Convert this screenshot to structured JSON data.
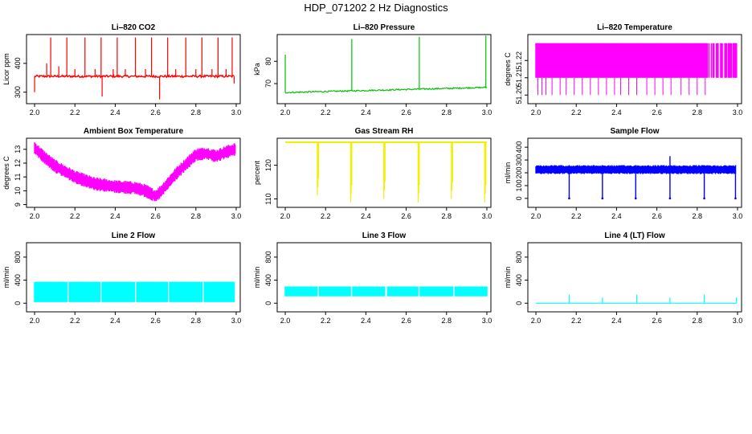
{
  "figure": {
    "title": "HDP_071202  2 Hz Diagnostics"
  },
  "chart_data": [
    {
      "type": "line",
      "title": "Li–820 CO2",
      "ylabel": "Licor ppm",
      "color": "#ff0000",
      "xlim": [
        1.96,
        3.02
      ],
      "ylim": [
        260,
        500
      ],
      "xticks": [
        2.0,
        2.2,
        2.4,
        2.6,
        2.8,
        3.0
      ],
      "xtick_labels": [
        "2.0",
        "2.2",
        "2.4",
        "2.6",
        "2.8",
        "3.0"
      ],
      "yticks": [
        300,
        400
      ],
      "ytick_labels": [
        "300",
        "400"
      ],
      "series": [
        {
          "name": "CO2",
          "baseline": 355,
          "noise": 4,
          "x_range": [
            2.0,
            2.99
          ],
          "spikes": [
            {
              "x": 2.0,
              "y": 300
            },
            {
              "x": 2.06,
              "y": 400
            },
            {
              "x": 2.08,
              "y": 490
            },
            {
              "x": 2.12,
              "y": 390
            },
            {
              "x": 2.16,
              "y": 490
            },
            {
              "x": 2.2,
              "y": 380
            },
            {
              "x": 2.25,
              "y": 490
            },
            {
              "x": 2.3,
              "y": 380
            },
            {
              "x": 2.33,
              "y": 490
            },
            {
              "x": 2.335,
              "y": 285
            },
            {
              "x": 2.39,
              "y": 380
            },
            {
              "x": 2.41,
              "y": 490
            },
            {
              "x": 2.45,
              "y": 380
            },
            {
              "x": 2.5,
              "y": 490
            },
            {
              "x": 2.55,
              "y": 380
            },
            {
              "x": 2.58,
              "y": 490
            },
            {
              "x": 2.62,
              "y": 275
            },
            {
              "x": 2.66,
              "y": 490
            },
            {
              "x": 2.7,
              "y": 380
            },
            {
              "x": 2.75,
              "y": 490
            },
            {
              "x": 2.8,
              "y": 380
            },
            {
              "x": 2.83,
              "y": 490
            },
            {
              "x": 2.88,
              "y": 380
            },
            {
              "x": 2.91,
              "y": 490
            },
            {
              "x": 2.95,
              "y": 380
            },
            {
              "x": 2.98,
              "y": 490
            },
            {
              "x": 2.99,
              "y": 330
            }
          ]
        }
      ]
    },
    {
      "type": "line",
      "title": "Li–820 Pressure",
      "ylabel": "kPa",
      "color": "#00c000",
      "xlim": [
        1.96,
        3.02
      ],
      "ylim": [
        61,
        92
      ],
      "xticks": [
        2.0,
        2.2,
        2.4,
        2.6,
        2.8,
        3.0
      ],
      "xtick_labels": [
        "2.0",
        "2.2",
        "2.4",
        "2.6",
        "2.8",
        "3.0"
      ],
      "yticks": [
        70,
        80
      ],
      "ytick_labels": [
        "70",
        "80"
      ],
      "series": [
        {
          "name": "Pressure",
          "trend": [
            [
              2.0,
              66.0
            ],
            [
              3.0,
              68.3
            ]
          ],
          "noise": 0.3,
          "x_range": [
            2.0,
            3.0
          ],
          "spikes": [
            {
              "x": 2.0,
              "y": 83
            },
            {
              "x": 2.33,
              "y": 90
            },
            {
              "x": 2.665,
              "y": 91
            },
            {
              "x": 2.995,
              "y": 91.5
            }
          ]
        }
      ]
    },
    {
      "type": "line",
      "title": "Li–820 Temperature",
      "ylabel": "degrees C",
      "color": "#ff00ff",
      "xlim": [
        1.96,
        3.02
      ],
      "ylim": [
        51.195,
        51.235
      ],
      "xticks": [
        2.0,
        2.2,
        2.4,
        2.6,
        2.8,
        3.0
      ],
      "xtick_labels": [
        "2.0",
        "2.2",
        "2.4",
        "2.6",
        "2.8",
        "3.0"
      ],
      "yticks": [
        51.2,
        51.21,
        51.22
      ],
      "ytick_labels": [
        "51.20",
        "51.21",
        "51.22"
      ],
      "series": [
        {
          "name": "Temperature",
          "band": [
            51.21,
            51.23
          ],
          "x_range": [
            2.0,
            2.995
          ],
          "gaps": [
            2.855,
            2.865,
            2.875,
            2.89,
            2.91,
            2.93,
            2.95,
            2.975
          ],
          "drops": [
            2.01,
            2.03,
            2.05,
            2.08,
            2.12,
            2.15,
            2.19,
            2.23,
            2.27,
            2.31,
            2.35,
            2.39,
            2.42,
            2.46,
            2.5,
            2.55,
            2.59,
            2.63,
            2.67,
            2.72,
            2.76,
            2.8,
            2.84
          ],
          "drop_to": 51.2
        }
      ]
    },
    {
      "type": "line",
      "title": "Ambient Box Temperature",
      "ylabel": "degrees C",
      "color": "#ff00ff",
      "xlim": [
        1.96,
        3.02
      ],
      "ylim": [
        8.8,
        13.8
      ],
      "xticks": [
        2.0,
        2.2,
        2.4,
        2.6,
        2.8,
        3.0
      ],
      "xtick_labels": [
        "2.0",
        "2.2",
        "2.4",
        "2.6",
        "2.8",
        "3.0"
      ],
      "yticks": [
        9,
        10,
        11,
        12,
        13
      ],
      "ytick_labels": [
        "9",
        "10",
        "11",
        "12",
        "13"
      ],
      "series": [
        {
          "name": "Ambient",
          "band_width": 0.8,
          "x_range": [
            2.0,
            2.995
          ],
          "x": [
            2.0,
            2.05,
            2.1,
            2.15,
            2.2,
            2.3,
            2.4,
            2.5,
            2.55,
            2.6,
            2.63,
            2.7,
            2.8,
            2.85,
            2.9,
            2.95,
            2.995
          ],
          "y": [
            13.1,
            12.4,
            11.8,
            11.4,
            11.0,
            10.5,
            10.3,
            10.2,
            10.0,
            9.6,
            10.0,
            11.2,
            12.6,
            12.7,
            12.5,
            12.8,
            13.0
          ]
        }
      ]
    },
    {
      "type": "line",
      "title": "Gas Stream RH",
      "ylabel": "percent",
      "color": "#f0f000",
      "xlim": [
        1.96,
        3.02
      ],
      "ylim": [
        107.5,
        128
      ],
      "xticks": [
        2.0,
        2.2,
        2.4,
        2.6,
        2.8,
        3.0
      ],
      "xtick_labels": [
        "2.0",
        "2.2",
        "2.4",
        "2.6",
        "2.8",
        "3.0"
      ],
      "yticks": [
        110,
        120
      ],
      "ytick_labels": [
        "110",
        "120"
      ],
      "series": [
        {
          "name": "RH",
          "baseline": 126.8,
          "x_range": [
            2.0,
            3.0
          ],
          "dips": [
            {
              "x": 2.165,
              "y": 111
            },
            {
              "x": 2.33,
              "y": 109
            },
            {
              "x": 2.495,
              "y": 110
            },
            {
              "x": 2.665,
              "y": 109
            },
            {
              "x": 2.83,
              "y": 110
            },
            {
              "x": 2.995,
              "y": 109
            }
          ]
        }
      ]
    },
    {
      "type": "line",
      "title": "Sample Flow",
      "ylabel": "ml/min",
      "color": "#0000ff",
      "xlim": [
        1.96,
        3.02
      ],
      "ylim": [
        -70,
        470
      ],
      "xticks": [
        2.0,
        2.2,
        2.4,
        2.6,
        2.8,
        3.0
      ],
      "xtick_labels": [
        "2.0",
        "2.2",
        "2.4",
        "2.6",
        "2.8",
        "3.0"
      ],
      "yticks": [
        0,
        100,
        200,
        300,
        400
      ],
      "ytick_labels": [
        "0",
        "100",
        "200",
        "300",
        "400"
      ],
      "series": [
        {
          "name": "Sample",
          "band": [
            190,
            260
          ],
          "x_range": [
            2.0,
            2.99
          ],
          "spike_top": 330,
          "dips": [
            {
              "x": 2.165,
              "y": 0
            },
            {
              "x": 2.33,
              "y": 0
            },
            {
              "x": 2.495,
              "y": 0
            },
            {
              "x": 2.665,
              "y": 0
            },
            {
              "x": 2.835,
              "y": 0
            },
            {
              "x": 2.99,
              "y": 0
            }
          ]
        }
      ]
    },
    {
      "type": "line",
      "title": "Line 2 Flow",
      "ylabel": "ml/min",
      "color": "#00ffff",
      "xlim": [
        1.96,
        3.02
      ],
      "ylim": [
        -150,
        1050
      ],
      "xticks": [
        2.0,
        2.2,
        2.4,
        2.6,
        2.8,
        3.0
      ],
      "xtick_labels": [
        "2.0",
        "2.2",
        "2.4",
        "2.6",
        "2.8",
        "3.0"
      ],
      "yticks": [
        0,
        400,
        800
      ],
      "ytick_labels": [
        "0",
        "400",
        "800"
      ],
      "series": [
        {
          "name": "Line 2",
          "band": [
            20,
            370
          ],
          "x_range": [
            2.0,
            2.99
          ],
          "gaps": [
            2.165,
            2.33,
            2.5,
            2.665,
            2.835
          ]
        }
      ]
    },
    {
      "type": "line",
      "title": "Line 3 Flow",
      "ylabel": "ml/min",
      "color": "#00ffff",
      "xlim": [
        1.96,
        3.02
      ],
      "ylim": [
        -150,
        1050
      ],
      "xticks": [
        2.0,
        2.2,
        2.4,
        2.6,
        2.8,
        3.0
      ],
      "xtick_labels": [
        "2.0",
        "2.2",
        "2.4",
        "2.6",
        "2.8",
        "3.0"
      ],
      "yticks": [
        0,
        400,
        800
      ],
      "ytick_labels": [
        "0",
        "400",
        "800"
      ],
      "series": [
        {
          "name": "Line 3",
          "band": [
            120,
            290
          ],
          "x_range": [
            2.0,
            3.0
          ],
          "gaps": [
            2.165,
            2.33,
            2.5,
            2.665,
            2.835
          ]
        }
      ]
    },
    {
      "type": "line",
      "title": "Line 4 (LT) Flow",
      "ylabel": "ml/min",
      "color": "#00ffff",
      "xlim": [
        1.96,
        3.02
      ],
      "ylim": [
        -150,
        1050
      ],
      "xticks": [
        2.0,
        2.2,
        2.4,
        2.6,
        2.8,
        3.0
      ],
      "xtick_labels": [
        "2.0",
        "2.2",
        "2.4",
        "2.6",
        "2.8",
        "3.0"
      ],
      "yticks": [
        0,
        400,
        800
      ],
      "ytick_labels": [
        "0",
        "400",
        "800"
      ],
      "series": [
        {
          "name": "Line 4",
          "baseline": 0,
          "x_range": [
            2.0,
            2.995
          ],
          "spikes": [
            {
              "x": 2.165,
              "y": 150
            },
            {
              "x": 2.33,
              "y": 100
            },
            {
              "x": 2.5,
              "y": 150
            },
            {
              "x": 2.665,
              "y": 100
            },
            {
              "x": 2.835,
              "y": 150
            },
            {
              "x": 2.995,
              "y": 100
            }
          ]
        }
      ]
    }
  ]
}
